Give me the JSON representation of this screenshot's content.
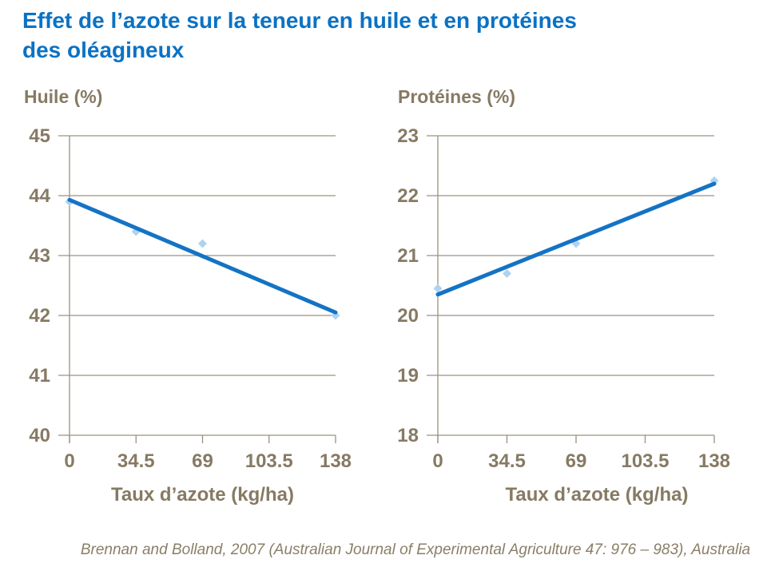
{
  "slide": {
    "title_line1": "Effet de l’azote sur la teneur en huile et en protéines",
    "title_line2": "des oléagineux",
    "source": "Brennan and Bolland, 2007 (Australian Journal of Experimental Agriculture 47: 976 – 983), Australia"
  },
  "colors": {
    "title_blue": "#0b72c4",
    "trend_line_blue": "#1473c4",
    "marker_light_blue": "#aed3f0",
    "axis_line": "#9c9280",
    "axis_text": "#867a63"
  },
  "chart_data": [
    {
      "type": "scatter",
      "title": "Huile (%)",
      "xlabel": "Taux d’azote (kg/ha)",
      "ylabel": "Huile (%)",
      "xlim": [
        0,
        138
      ],
      "ylim": [
        40,
        45
      ],
      "yticks": [
        45,
        44,
        43,
        42,
        41,
        40
      ],
      "xticks": [
        0,
        34.5,
        69,
        103.5,
        138
      ],
      "xtick_labels": [
        "0",
        "34.5",
        "69",
        "103.5",
        "138"
      ],
      "points": [
        [
          0,
          43.9
        ],
        [
          34.5,
          43.4
        ],
        [
          69,
          43.2
        ],
        [
          138,
          42.0
        ]
      ],
      "trendline": {
        "x": [
          0,
          138
        ],
        "y": [
          43.93,
          42.05
        ]
      },
      "grid": true,
      "legend": "none"
    },
    {
      "type": "scatter",
      "title": "Protéines (%)",
      "xlabel": "Taux d’azote (kg/ha)",
      "ylabel": "Protéines (%)",
      "xlim": [
        0,
        138
      ],
      "ylim": [
        18,
        23
      ],
      "yticks": [
        23,
        22,
        21,
        20,
        19,
        18
      ],
      "xticks": [
        0,
        34.5,
        69,
        103.5,
        138
      ],
      "xtick_labels": [
        "0",
        "34.5",
        "69",
        "103.5",
        "138"
      ],
      "points": [
        [
          0,
          20.45
        ],
        [
          34.5,
          20.7
        ],
        [
          69,
          21.2
        ],
        [
          138,
          22.25
        ]
      ],
      "trendline": {
        "x": [
          0,
          138
        ],
        "y": [
          20.35,
          22.2
        ]
      },
      "grid": true,
      "legend": "none"
    }
  ]
}
